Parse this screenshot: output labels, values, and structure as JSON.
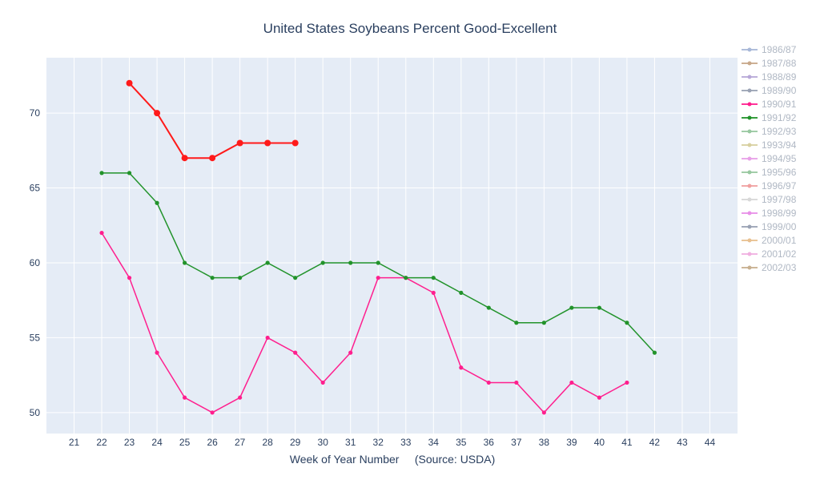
{
  "chart_data": {
    "type": "line",
    "title": "United States Soybeans Percent Good-Excellent",
    "xlabel": "Week of Year Number     (Source: USDA)",
    "ylabel": "",
    "x_ticks": [
      21,
      22,
      23,
      24,
      25,
      26,
      27,
      28,
      29,
      30,
      31,
      32,
      33,
      34,
      35,
      36,
      37,
      38,
      39,
      40,
      41,
      42,
      43,
      44
    ],
    "y_ticks": [
      50,
      55,
      60,
      65,
      70
    ],
    "xlim": [
      20,
      45
    ],
    "ylim": [
      48.6,
      73.7
    ],
    "grid": true,
    "legend_placement": "right",
    "plot_background": "#e5ecf6",
    "series": [
      {
        "name": "1986/87",
        "color": "#a8b8d8",
        "x": [],
        "y": []
      },
      {
        "name": "1987/88",
        "color": "#c8a88a",
        "x": [],
        "y": []
      },
      {
        "name": "1988/89",
        "color": "#b8a8d8",
        "x": [],
        "y": []
      },
      {
        "name": "1989/90",
        "color": "#9aa2b4",
        "x": [],
        "y": []
      },
      {
        "name": "1990/91",
        "color": "#ff1f8e",
        "x": [
          22,
          23,
          24,
          25,
          26,
          27,
          28,
          29,
          30,
          31,
          32,
          33,
          34,
          35,
          36,
          37,
          38,
          39,
          40,
          41
        ],
        "y": [
          62,
          59,
          54,
          51,
          50,
          51,
          55,
          54,
          52,
          54,
          59,
          59,
          58,
          53,
          52,
          52,
          50,
          52,
          51,
          52
        ]
      },
      {
        "name": "1991/92",
        "color": "#22932b",
        "x": [
          22,
          23,
          24,
          25,
          26,
          27,
          28,
          29,
          30,
          31,
          32,
          33,
          34,
          35,
          36,
          37,
          38,
          39,
          40,
          41,
          42
        ],
        "y": [
          66,
          66,
          64,
          60,
          59,
          59,
          60,
          59,
          60,
          60,
          60,
          59,
          59,
          58,
          57,
          56,
          56,
          57,
          57,
          56,
          54
        ]
      },
      {
        "name": "1992/93",
        "color": "#98c8a0",
        "x": [],
        "y": []
      },
      {
        "name": "1993/94",
        "color": "#d8d0a0",
        "x": [],
        "y": []
      },
      {
        "name": "1994/95",
        "color": "#e8a0e8",
        "x": [],
        "y": []
      },
      {
        "name": "1995/96",
        "color": "#98c8a0",
        "x": [],
        "y": []
      },
      {
        "name": "1996/97",
        "color": "#f0a0a0",
        "x": [],
        "y": []
      },
      {
        "name": "1997/98",
        "color": "#d8d8d8",
        "x": [],
        "y": []
      },
      {
        "name": "1998/99",
        "color": "#e890e8",
        "x": [],
        "y": []
      },
      {
        "name": "1999/00",
        "color": "#9aa2b4",
        "x": [],
        "y": []
      },
      {
        "name": "2000/01",
        "color": "#e8c090",
        "x": [],
        "y": []
      },
      {
        "name": "2001/02",
        "color": "#f0b0e0",
        "x": [],
        "y": []
      },
      {
        "name": "2002/03",
        "color": "#c8b090",
        "x": [],
        "y": []
      },
      {
        "name": "",
        "color": "#ff1a1a",
        "x": [
          23,
          24,
          25,
          26,
          27,
          28,
          29
        ],
        "y": [
          72,
          70,
          67,
          67,
          68,
          68,
          68
        ]
      }
    ]
  }
}
